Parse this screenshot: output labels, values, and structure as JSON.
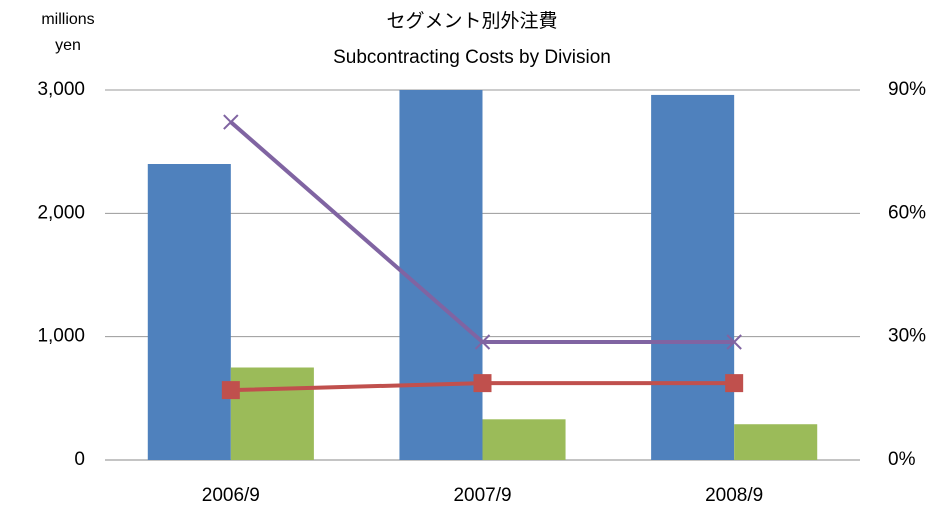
{
  "chart_data": {
    "type": "bar_line",
    "title": [
      "セグメント別外注費",
      "Subcontracting Costs by Division"
    ],
    "y_axis_label": [
      "millions",
      "yen"
    ],
    "categories": [
      "2006/9",
      "2007/9",
      "2008/9"
    ],
    "series": [
      {
        "type": "bar",
        "color": "#4f81bd",
        "values": [
          2400,
          3000,
          2960
        ]
      },
      {
        "type": "bar",
        "color": "#9bbb59",
        "values": [
          750,
          330,
          290
        ]
      },
      {
        "type": "line",
        "axis": "y2",
        "marker": "square",
        "color": "#c0504d",
        "values": [
          17,
          18.7,
          18.7
        ]
      },
      {
        "type": "line",
        "axis": "y2",
        "marker": "x",
        "color": "#8064a2",
        "values": [
          82.2,
          28.7,
          28.7
        ]
      }
    ],
    "ylim": [
      0,
      3000
    ],
    "yticks": [
      0,
      {
        "value": 1000,
        "label": "1,000"
      },
      {
        "value": 2000,
        "label": "2,000"
      },
      {
        "value": 3000,
        "label": "3,000"
      }
    ],
    "y2lim": [
      0,
      90
    ],
    "y2ticks": [
      {
        "value": 0,
        "label": "0%"
      },
      {
        "value": 30,
        "label": "30%"
      },
      {
        "value": 60,
        "label": "60%"
      },
      {
        "value": 90,
        "label": "90%"
      }
    ],
    "grid": true
  }
}
